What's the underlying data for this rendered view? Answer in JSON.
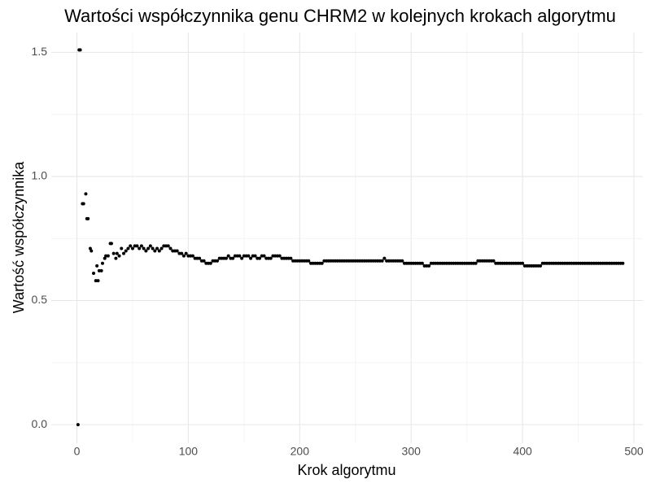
{
  "chart_data": {
    "type": "scatter",
    "title": "Wartości współczynnika genu CHRM2 w kolejnych krokach algorytmu",
    "x_label": "Krok algorytmu",
    "y_label": "Wartość współczynnika",
    "xlim": [
      -23,
      508
    ],
    "ylim": [
      -0.075,
      1.58
    ],
    "xticks": [
      0,
      100,
      200,
      300,
      400,
      500
    ],
    "yticks": [
      {
        "value": 0,
        "label": "0.0"
      },
      0.5,
      {
        "value": 1,
        "label": "1.0"
      },
      1.5
    ],
    "grid": true,
    "color": "#000000",
    "x": [
      1,
      2,
      3,
      5,
      6,
      8,
      9,
      10,
      12,
      13,
      15,
      17,
      18,
      19,
      20,
      22,
      23,
      25,
      26,
      28,
      30,
      31,
      33,
      35,
      36,
      38,
      40,
      42,
      44,
      46,
      48,
      50,
      52,
      54,
      56,
      58,
      60,
      62,
      64,
      66,
      68,
      70,
      72,
      74,
      76,
      78,
      80,
      82,
      84,
      86,
      88,
      90,
      92,
      94,
      96,
      98,
      100,
      102,
      104,
      106,
      108,
      110,
      112,
      114,
      116,
      118,
      120,
      122,
      124,
      126,
      128,
      130,
      132,
      134,
      136,
      138,
      140,
      142,
      144,
      146,
      148,
      150,
      152,
      154,
      156,
      158,
      160,
      162,
      164,
      166,
      168,
      170,
      172,
      174,
      176,
      178,
      180,
      182,
      184,
      186,
      188,
      190,
      192,
      194,
      196,
      198,
      200,
      202,
      204,
      206,
      208,
      210,
      212,
      214,
      216,
      218,
      220,
      222,
      224,
      226,
      228,
      230,
      232,
      234,
      236,
      238,
      240,
      242,
      244,
      246,
      248,
      250,
      252,
      254,
      256,
      258,
      260,
      262,
      264,
      266,
      268,
      270,
      272,
      274,
      276,
      278,
      280,
      282,
      284,
      286,
      288,
      290,
      292,
      294,
      296,
      298,
      300,
      302,
      304,
      306,
      308,
      310,
      312,
      314,
      316,
      318,
      320,
      322,
      324,
      326,
      328,
      330,
      332,
      334,
      336,
      338,
      340,
      342,
      344,
      346,
      348,
      350,
      352,
      354,
      356,
      358,
      360,
      362,
      364,
      366,
      368,
      370,
      372,
      374,
      376,
      378,
      380,
      382,
      384,
      386,
      388,
      390,
      392,
      394,
      396,
      398,
      400,
      402,
      404,
      406,
      408,
      410,
      412,
      414,
      416,
      418,
      420,
      422,
      424,
      426,
      428,
      430,
      432,
      434,
      436,
      438,
      440,
      442,
      444,
      446,
      448,
      450,
      452,
      454,
      456,
      458,
      460,
      462,
      464,
      466,
      468,
      470,
      472,
      474,
      476,
      478,
      480,
      482,
      484,
      486,
      488,
      490
    ],
    "y": [
      0,
      1.51,
      1.51,
      0.89,
      0.89,
      0.93,
      0.83,
      0.83,
      0.71,
      0.7,
      0.61,
      0.58,
      0.64,
      0.58,
      0.62,
      0.62,
      0.65,
      0.67,
      0.68,
      0.68,
      0.73,
      0.73,
      0.69,
      0.67,
      0.69,
      0.68,
      0.71,
      0.69,
      0.7,
      0.71,
      0.72,
      0.71,
      0.72,
      0.72,
      0.71,
      0.72,
      0.71,
      0.7,
      0.71,
      0.72,
      0.71,
      0.7,
      0.71,
      0.7,
      0.71,
      0.72,
      0.72,
      0.72,
      0.71,
      0.7,
      0.7,
      0.7,
      0.69,
      0.69,
      0.68,
      0.69,
      0.68,
      0.68,
      0.68,
      0.67,
      0.67,
      0.67,
      0.66,
      0.66,
      0.65,
      0.65,
      0.65,
      0.66,
      0.66,
      0.66,
      0.67,
      0.67,
      0.67,
      0.67,
      0.68,
      0.67,
      0.67,
      0.68,
      0.68,
      0.68,
      0.67,
      0.68,
      0.68,
      0.68,
      0.67,
      0.68,
      0.68,
      0.67,
      0.67,
      0.68,
      0.68,
      0.67,
      0.67,
      0.67,
      0.68,
      0.68,
      0.68,
      0.68,
      0.67,
      0.67,
      0.67,
      0.67,
      0.67,
      0.66,
      0.66,
      0.66,
      0.66,
      0.66,
      0.66,
      0.66,
      0.66,
      0.65,
      0.65,
      0.65,
      0.65,
      0.65,
      0.65,
      0.66,
      0.66,
      0.66,
      0.66,
      0.66,
      0.66,
      0.66,
      0.66,
      0.66,
      0.66,
      0.66,
      0.66,
      0.66,
      0.66,
      0.66,
      0.66,
      0.66,
      0.66,
      0.66,
      0.66,
      0.66,
      0.66,
      0.66,
      0.66,
      0.66,
      0.66,
      0.66,
      0.67,
      0.66,
      0.66,
      0.66,
      0.66,
      0.66,
      0.66,
      0.66,
      0.66,
      0.65,
      0.65,
      0.65,
      0.65,
      0.65,
      0.65,
      0.65,
      0.65,
      0.65,
      0.64,
      0.64,
      0.64,
      0.65,
      0.65,
      0.65,
      0.65,
      0.65,
      0.65,
      0.65,
      0.65,
      0.65,
      0.65,
      0.65,
      0.65,
      0.65,
      0.65,
      0.65,
      0.65,
      0.65,
      0.65,
      0.65,
      0.65,
      0.65,
      0.66,
      0.66,
      0.66,
      0.66,
      0.66,
      0.66,
      0.66,
      0.66,
      0.65,
      0.65,
      0.65,
      0.65,
      0.65,
      0.65,
      0.65,
      0.65,
      0.65,
      0.65,
      0.65,
      0.65,
      0.65,
      0.64,
      0.64,
      0.64,
      0.64,
      0.64,
      0.64,
      0.64,
      0.64,
      0.65,
      0.65,
      0.65,
      0.65,
      0.65,
      0.65,
      0.65,
      0.65,
      0.65,
      0.65,
      0.65,
      0.65,
      0.65,
      0.65,
      0.65,
      0.65,
      0.65,
      0.65,
      0.65,
      0.65,
      0.65,
      0.65,
      0.65,
      0.65,
      0.65,
      0.65,
      0.65,
      0.65,
      0.65,
      0.65,
      0.65,
      0.65,
      0.65,
      0.65,
      0.65,
      0.65,
      0.65
    ]
  }
}
